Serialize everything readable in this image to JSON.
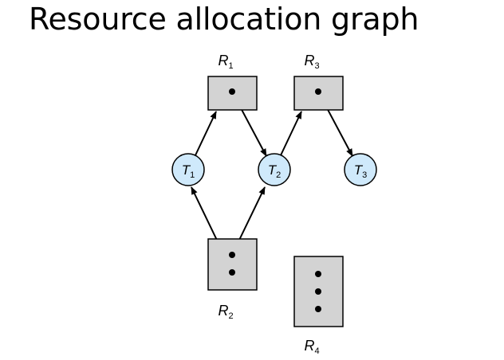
{
  "title": "Resource allocation graph",
  "colors": {
    "resource_fill": "#d3d3d3",
    "thread_fill": "#cfe9fb",
    "outline": "#000000",
    "edge": "#000000"
  },
  "resources": [
    {
      "id": "R1",
      "base": "R",
      "sub": "1",
      "instances": 1
    },
    {
      "id": "R3",
      "base": "R",
      "sub": "3",
      "instances": 1
    },
    {
      "id": "R2",
      "base": "R",
      "sub": "2",
      "instances": 2
    },
    {
      "id": "R4",
      "base": "R",
      "sub": "4",
      "instances": 3
    }
  ],
  "threads": [
    {
      "id": "T1",
      "base": "T",
      "sub": "1"
    },
    {
      "id": "T2",
      "base": "T",
      "sub": "2"
    },
    {
      "id": "T3",
      "base": "T",
      "sub": "3"
    }
  ],
  "edges": [
    {
      "from": "T1",
      "to": "R1",
      "kind": "request"
    },
    {
      "from": "R1",
      "to": "T2",
      "kind": "assignment"
    },
    {
      "from": "T2",
      "to": "R3",
      "kind": "request"
    },
    {
      "from": "R3",
      "to": "T3",
      "kind": "assignment"
    },
    {
      "from": "R2",
      "to": "T1",
      "kind": "assignment"
    },
    {
      "from": "R2",
      "to": "T2",
      "kind": "assignment"
    }
  ]
}
